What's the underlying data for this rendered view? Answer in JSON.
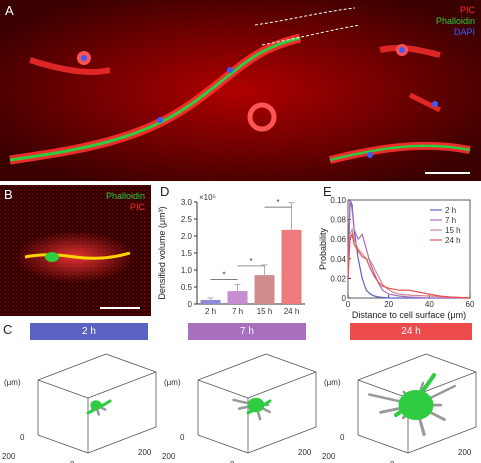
{
  "panels": {
    "A": {
      "letter": "A",
      "legend": [
        "PIC",
        "Phalloidin",
        "DAPI"
      ]
    },
    "B": {
      "letter": "B",
      "legend": [
        "Phalloidin",
        "PIC"
      ]
    },
    "C": {
      "letter": "C"
    },
    "D": {
      "letter": "D"
    },
    "E": {
      "letter": "E"
    }
  },
  "colors": {
    "pic": "#ff2a2a",
    "phalloidin": "#2ecc40",
    "dapi": "#3c5bff",
    "bar_2h": "#8e8ad6",
    "bar_7h": "#c78fd1",
    "bar_15h": "#cf8c8c",
    "bar_24h": "#ee7b7b",
    "tp_2h": "#5a63c2",
    "tp_7h": "#a86fbf",
    "tp_24h": "#ee4c4c"
  },
  "chart_data": [
    {
      "id": "D",
      "type": "bar",
      "categories": [
        "2 h",
        "7 h",
        "15 h",
        "24 h"
      ],
      "values": [
        0.12,
        0.38,
        0.85,
        2.18
      ],
      "errors": [
        0.06,
        0.2,
        0.3,
        0.8
      ],
      "ylabel": "Densified volume (μm³)",
      "yexp": "×10⁵",
      "ylim": [
        0,
        3
      ],
      "yticks": [
        "0",
        "0.5",
        "1.0",
        "1.5",
        "2.0",
        "2.5",
        "3.0"
      ],
      "significance": [
        "*",
        "*",
        "*"
      ]
    },
    {
      "id": "E",
      "type": "line",
      "xlabel": "Distance to cell surface (μm)",
      "ylabel": "Probability",
      "xlim": [
        0,
        60
      ],
      "ylim": [
        0,
        0.1
      ],
      "xticks": [
        "0",
        "20",
        "40",
        "60"
      ],
      "yticks": [
        "0",
        "0.02",
        "0.04",
        "0.06",
        "0.08",
        "0.10"
      ],
      "legend_position": "top-right",
      "series": [
        {
          "name": "2 h",
          "color": "#5a63c2",
          "x": [
            0,
            1,
            2,
            3,
            5,
            7,
            9,
            11,
            13,
            15,
            20,
            30,
            40,
            60
          ],
          "y": [
            0.02,
            0.1,
            0.095,
            0.07,
            0.04,
            0.02,
            0.008,
            0.004,
            0.002,
            0.001,
            0.0,
            0.0,
            0.0,
            0.0
          ]
        },
        {
          "name": "7 h",
          "color": "#a86fbf",
          "x": [
            0,
            1,
            2,
            3,
            5,
            7,
            9,
            11,
            13,
            15,
            17,
            20,
            25,
            30,
            40,
            60
          ],
          "y": [
            0.02,
            0.1,
            0.09,
            0.07,
            0.06,
            0.065,
            0.05,
            0.035,
            0.025,
            0.015,
            0.008,
            0.004,
            0.002,
            0.001,
            0.0,
            0.0
          ]
        },
        {
          "name": "15 h",
          "color": "#cf8c8c",
          "x": [
            0,
            1,
            2,
            3,
            5,
            7,
            9,
            11,
            13,
            15,
            17,
            19,
            22,
            25,
            30,
            40,
            50,
            60
          ],
          "y": [
            0.02,
            0.065,
            0.07,
            0.06,
            0.05,
            0.045,
            0.04,
            0.038,
            0.03,
            0.022,
            0.014,
            0.01,
            0.006,
            0.004,
            0.003,
            0.002,
            0.001,
            0.0
          ]
        },
        {
          "name": "24 h",
          "color": "#ee4c4c",
          "x": [
            0,
            1,
            2,
            3,
            5,
            7,
            9,
            11,
            13,
            15,
            17,
            20,
            25,
            30,
            35,
            40,
            45,
            50,
            60
          ],
          "y": [
            0.02,
            0.06,
            0.065,
            0.055,
            0.048,
            0.042,
            0.04,
            0.03,
            0.022,
            0.016,
            0.012,
            0.01,
            0.008,
            0.008,
            0.006,
            0.004,
            0.002,
            0.001,
            0.0
          ]
        }
      ]
    },
    {
      "id": "C",
      "type": "scatter",
      "timepoints": [
        "2 h",
        "7 h",
        "24 h"
      ],
      "zlabel": "(μm)",
      "axis_ticks": [
        "0",
        "200",
        "0",
        "200"
      ]
    }
  ]
}
